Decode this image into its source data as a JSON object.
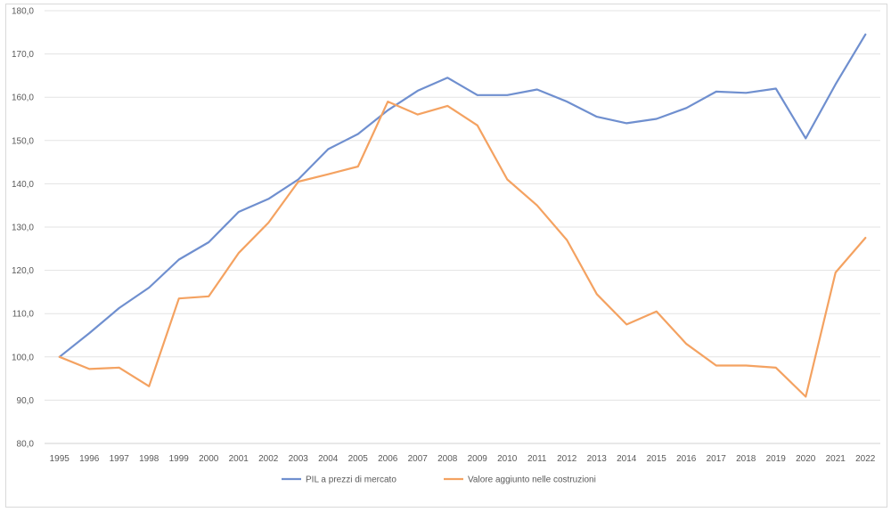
{
  "chart_data": {
    "type": "line",
    "title": "",
    "xlabel": "",
    "ylabel": "",
    "ylim": [
      80,
      180
    ],
    "yticks": [
      "80,0",
      "90,0",
      "100,0",
      "110,0",
      "120,0",
      "130,0",
      "140,0",
      "150,0",
      "160,0",
      "170,0",
      "180,0"
    ],
    "categories": [
      "1995",
      "1996",
      "1997",
      "1998",
      "1999",
      "2000",
      "2001",
      "2002",
      "2003",
      "2004",
      "2005",
      "2006",
      "2007",
      "2008",
      "2009",
      "2010",
      "2011",
      "2012",
      "2013",
      "2014",
      "2015",
      "2016",
      "2017",
      "2018",
      "2019",
      "2020",
      "2021",
      "2022"
    ],
    "series": [
      {
        "name": "PIL a prezzi di mercato",
        "color": "#6f8fcf",
        "values": [
          100.0,
          105.5,
          111.3,
          116.0,
          122.5,
          126.5,
          133.5,
          136.5,
          141.0,
          148.0,
          151.5,
          157.0,
          161.5,
          164.5,
          160.5,
          160.5,
          161.8,
          159.0,
          155.5,
          154.0,
          155.0,
          157.5,
          161.3,
          161.0,
          162.0,
          150.5,
          163.0,
          174.5
        ]
      },
      {
        "name": "Valore aggiunto nelle costruzioni",
        "color": "#f4a261",
        "values": [
          100.0,
          97.2,
          97.5,
          93.2,
          113.5,
          114.0,
          124.0,
          131.0,
          140.5,
          142.2,
          144.0,
          159.0,
          156.0,
          158.0,
          153.5,
          141.0,
          135.0,
          127.0,
          114.5,
          107.5,
          110.5,
          103.0,
          98.0,
          98.0,
          97.5,
          90.8,
          119.5,
          127.5
        ]
      }
    ],
    "grid": true,
    "legend_position": "bottom"
  }
}
